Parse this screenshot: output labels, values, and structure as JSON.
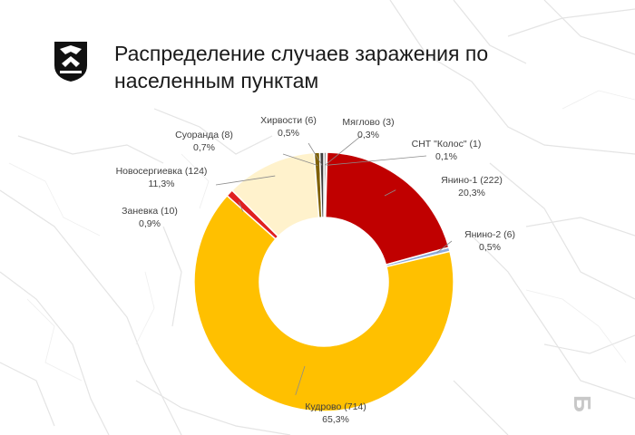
{
  "header": {
    "logo_icon": "coat-of-arms-icon",
    "title_line1": "Распределение  случаев заражения по",
    "title_line2": "населенным пунктам"
  },
  "chart_data": {
    "type": "pie",
    "variant": "donut",
    "title": "Распределение  случаев заражения по населенным пунктам",
    "slices": [
      {
        "category": "Мяглово",
        "count": 3,
        "percent": "0,3%",
        "value": 0.3,
        "color": "#7f7f7f"
      },
      {
        "category": "СНТ \"Колос\"",
        "count": 1,
        "percent": "0,1%",
        "value": 0.1,
        "color": "#ffc000"
      },
      {
        "category": "Янино-1",
        "count": 222,
        "percent": "20,3%",
        "value": 20.3,
        "color": "#c00000"
      },
      {
        "category": "Янино-2",
        "count": 6,
        "percent": "0,5%",
        "value": 0.5,
        "color": "#8eaadb"
      },
      {
        "category": "Кудрово",
        "count": 714,
        "percent": "65,3%",
        "value": 65.3,
        "color": "#ffc000"
      },
      {
        "category": "Заневка",
        "count": 10,
        "percent": "0,9%",
        "value": 0.9,
        "color": "#e02020"
      },
      {
        "category": "Новосергиевка",
        "count": 124,
        "percent": "11,3%",
        "value": 11.3,
        "color": "#fff2cc"
      },
      {
        "category": "Суоранда",
        "count": 8,
        "percent": "0,7%",
        "value": 0.7,
        "color": "#7f6000"
      },
      {
        "category": "Хирвости",
        "count": 6,
        "percent": "0,5%",
        "value": 0.5,
        "color": "#404040"
      }
    ]
  },
  "footer": {
    "corner_glyph": "Б"
  }
}
